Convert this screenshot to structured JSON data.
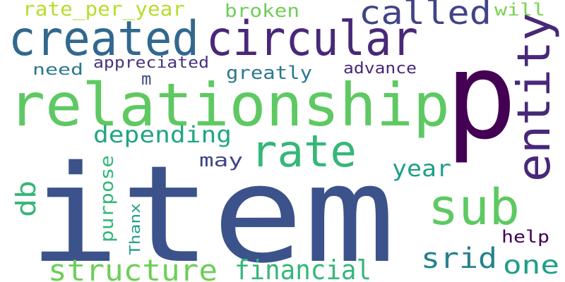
{
  "words": [
    {
      "text": "item",
      "color": "#3b528b",
      "orientation": "horizontal"
    },
    {
      "text": "p",
      "color": "#440154",
      "orientation": "horizontal"
    },
    {
      "text": "relationship",
      "color": "#5ec962",
      "orientation": "horizontal"
    },
    {
      "text": "circular",
      "color": "#482878",
      "orientation": "horizontal"
    },
    {
      "text": "created",
      "color": "#31688e",
      "orientation": "horizontal"
    },
    {
      "text": "entity",
      "color": "#482878",
      "orientation": "vertical"
    },
    {
      "text": "sub",
      "color": "#5ec962",
      "orientation": "horizontal"
    },
    {
      "text": "rate",
      "color": "#35b779",
      "orientation": "horizontal"
    },
    {
      "text": "structure",
      "color": "#6ece58",
      "orientation": "horizontal"
    },
    {
      "text": "called",
      "color": "#414487",
      "orientation": "horizontal"
    },
    {
      "text": "financial",
      "color": "#35b779",
      "orientation": "horizontal"
    },
    {
      "text": "depending",
      "color": "#21a585",
      "orientation": "horizontal"
    },
    {
      "text": "srid",
      "color": "#26828e",
      "orientation": "horizontal"
    },
    {
      "text": "one",
      "color": "#1f9e89",
      "orientation": "horizontal"
    },
    {
      "text": "year",
      "color": "#1f9e89",
      "orientation": "horizontal"
    },
    {
      "text": "db",
      "color": "#35b779",
      "orientation": "vertical"
    },
    {
      "text": "rate_per_year",
      "color": "#b5de2b",
      "orientation": "horizontal"
    },
    {
      "text": "broken",
      "color": "#6ece58",
      "orientation": "horizontal"
    },
    {
      "text": "will",
      "color": "#7ad151",
      "orientation": "horizontal"
    },
    {
      "text": "greatly",
      "color": "#2a788e",
      "orientation": "horizontal"
    },
    {
      "text": "purpose",
      "color": "#35b779",
      "orientation": "vertical"
    },
    {
      "text": "may",
      "color": "#414487",
      "orientation": "horizontal"
    },
    {
      "text": "need",
      "color": "#2a788e",
      "orientation": "horizontal"
    },
    {
      "text": "appreciated",
      "color": "#46337e",
      "orientation": "horizontal"
    },
    {
      "text": "advance",
      "color": "#482878",
      "orientation": "horizontal"
    },
    {
      "text": "help",
      "color": "#440154",
      "orientation": "horizontal"
    },
    {
      "text": "Thanx",
      "color": "#1f9e89",
      "orientation": "vertical"
    },
    {
      "text": "m",
      "color": "#3e4989",
      "orientation": "horizontal"
    }
  ]
}
